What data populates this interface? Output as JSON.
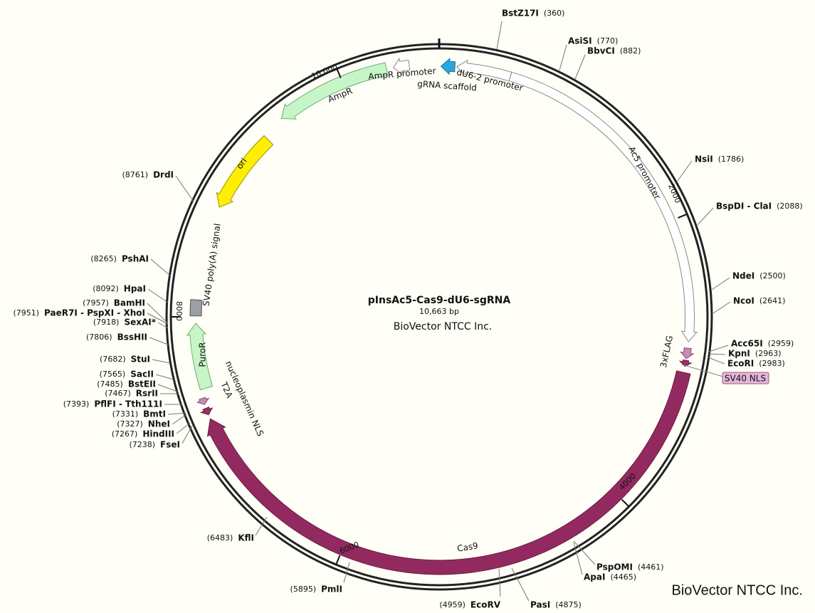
{
  "plasmid": {
    "name": "pInsAc5-Cas9-dU6-sgRNA",
    "length": "10,663 bp",
    "company": "BioVector NTCC Inc."
  },
  "ticks": [
    2000,
    4000,
    6000,
    8000,
    "10,000"
  ],
  "features": [
    {
      "label": "Ac5 promoter"
    },
    {
      "label": "dU6-2 promoter"
    },
    {
      "label": "gRNA scaffold"
    },
    {
      "label": "3xFLAG"
    },
    {
      "label": "SV40 NLS"
    },
    {
      "label": "Cas9"
    },
    {
      "label": "nucleoplasmin NLS"
    },
    {
      "label": "T2A"
    },
    {
      "label": "PuroR"
    },
    {
      "label": "SV40 poly(A) signal"
    },
    {
      "label": "ori"
    },
    {
      "label": "AmpR"
    },
    {
      "label": "AmpR promoter"
    }
  ],
  "sites": [
    {
      "name": "BstZ17I",
      "position": "(360)"
    },
    {
      "name": "AsiSI",
      "position": "(770)"
    },
    {
      "name": "BbvCI",
      "position": "(882)"
    },
    {
      "name": "NsiI",
      "position": "(1786)"
    },
    {
      "name": "BspDI - ClaI",
      "position": "(2088)"
    },
    {
      "name": "NdeI",
      "position": "(2500)"
    },
    {
      "name": "NcoI",
      "position": "(2641)"
    },
    {
      "name": "Acc65I",
      "position": "(2959)"
    },
    {
      "name": "KpnI",
      "position": "(2963)"
    },
    {
      "name": "EcoRI",
      "position": "(2983)"
    },
    {
      "name": "PspOMI",
      "position": "(4461)"
    },
    {
      "name": "ApaI",
      "position": "(4465)"
    },
    {
      "name": "PasI",
      "position": "(4875)"
    },
    {
      "name": "EcoRV",
      "position": "(4959)"
    },
    {
      "name": "PmlI",
      "position": "(5895)"
    },
    {
      "name": "KflI",
      "position": "(6483)"
    },
    {
      "name": "FseI",
      "position": "(7238)"
    },
    {
      "name": "HindIII",
      "position": "(7267)"
    },
    {
      "name": "NheI",
      "position": "(7327)"
    },
    {
      "name": "BmtI",
      "position": "(7331)"
    },
    {
      "name": "PflFI - Tth111I",
      "position": "(7393)"
    },
    {
      "name": "RsrII",
      "position": "(7467)"
    },
    {
      "name": "BstEII",
      "position": "(7485)"
    },
    {
      "name": "SacII",
      "position": "(7565)"
    },
    {
      "name": "StuI",
      "position": "(7682)"
    },
    {
      "name": "BssHII",
      "position": "(7806)"
    },
    {
      "name": "SexAI*",
      "position": "(7918)"
    },
    {
      "name": "PaeR7I - PspXI - XhoI",
      "position": "(7951)"
    },
    {
      "name": "BamHI",
      "position": "(7957)"
    },
    {
      "name": "HpaI",
      "position": "(8092)"
    },
    {
      "name": "PshAI",
      "position": "(8265)"
    },
    {
      "name": "DrdI",
      "position": "(8761)"
    }
  ],
  "watermark": "BioVector NTCC Inc."
}
